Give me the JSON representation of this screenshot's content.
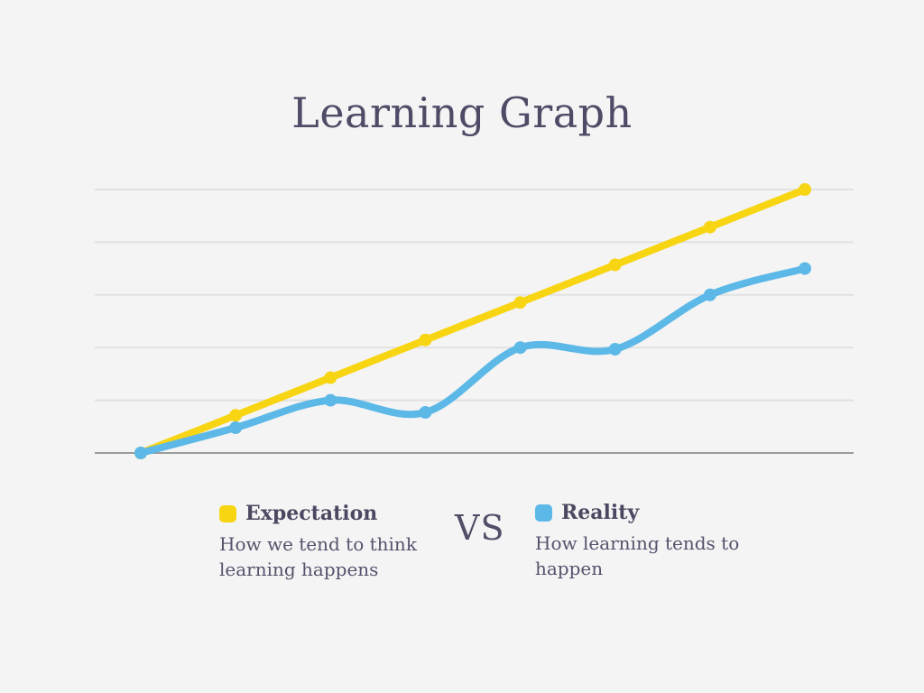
{
  "page": {
    "background_color": "#F4F4F4",
    "text_color": "#514E68"
  },
  "title": "Learning Graph",
  "legend": {
    "vs_label": "VS",
    "items": [
      {
        "id": "expectation",
        "label": "Expectation",
        "description": "How we tend to think\nlearning happens",
        "color": "#F7D513"
      },
      {
        "id": "reality",
        "label": "Reality",
        "description": "How learning tends to\nhappen",
        "color": "#5CB8E7"
      }
    ]
  },
  "chart_data": {
    "type": "line",
    "title": "Learning Graph",
    "x": [
      1,
      2,
      3,
      4,
      5,
      6,
      7,
      8
    ],
    "xlabel": "",
    "ylabel": "",
    "ylim": [
      0,
      5
    ],
    "grid": "horizontal",
    "gridline_count": 6,
    "axis_tick_labels_visible": false,
    "legend_position": "bottom",
    "series": [
      {
        "name": "Expectation",
        "color": "#F7D513",
        "shape": "straight",
        "values": [
          0,
          0.714,
          1.429,
          2.143,
          2.857,
          3.571,
          4.286,
          5
        ]
      },
      {
        "name": "Reality",
        "color": "#5CB8E7",
        "shape": "smooth",
        "values": [
          0,
          0.48,
          1.0,
          0.77,
          2.0,
          1.97,
          3.0,
          3.5
        ]
      }
    ],
    "colors": {
      "gridline": "#E1E1E1",
      "axis_line": "#9A9A9A"
    }
  }
}
